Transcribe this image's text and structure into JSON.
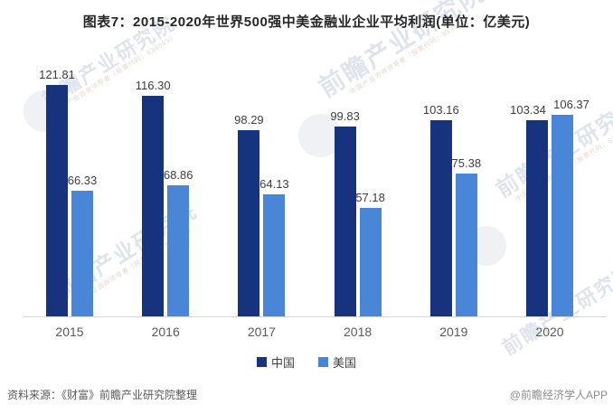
{
  "title": "图表7：2015-2020年世界500强中美金融业企业平均利润(单位：亿美元)",
  "chart_data": {
    "type": "bar",
    "title": "2015-2020年世界500强中美金融业企业平均利润",
    "unit": "亿美元",
    "categories": [
      "2015",
      "2016",
      "2017",
      "2018",
      "2019",
      "2020"
    ],
    "series": [
      {
        "name": "中国",
        "color": "#17337D",
        "values": [
          121.81,
          116.3,
          98.29,
          99.83,
          103.16,
          103.34
        ]
      },
      {
        "name": "美国",
        "color": "#4A86D8",
        "values": [
          66.33,
          68.86,
          64.13,
          57.18,
          75.38,
          106.37
        ]
      }
    ],
    "ylim": [
      0,
      130
    ],
    "grid": false,
    "y_axis_visible": false,
    "value_labels": true,
    "legend_position": "bottom"
  },
  "footer": {
    "source": "资料来源：《财富》前瞻产业研究院整理",
    "credit": "@前瞻经济学人APP"
  },
  "watermark": {
    "text": "前瞻产业研究院",
    "subtext": "中国产业咨询领导者（股票代码：839599）"
  }
}
